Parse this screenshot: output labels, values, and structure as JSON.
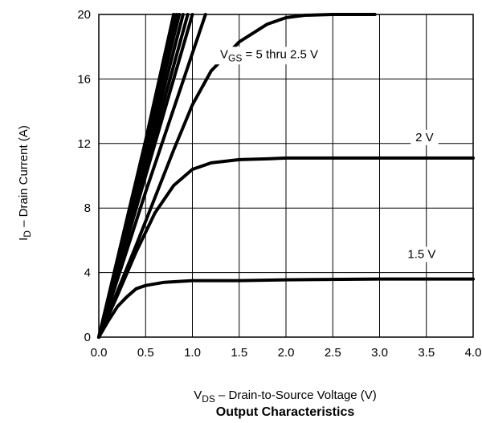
{
  "chart_data": {
    "type": "line",
    "title": "",
    "caption": "Output Characteristics",
    "xlabel": {
      "main": "V",
      "sub": "DS",
      "rest": " –  Drain-to-Source Voltage (V)"
    },
    "ylabel": {
      "main": "I",
      "sub": "D",
      "rest": " –  Drain Current (A)"
    },
    "xlim": [
      0,
      4
    ],
    "ylim": [
      0,
      20
    ],
    "x_ticks": [
      "0.0",
      "0.5",
      "1.0",
      "1.5",
      "2.0",
      "2.5",
      "3.0",
      "3.5",
      "4.0"
    ],
    "y_ticks": [
      "0",
      "4",
      "8",
      "12",
      "16",
      "20"
    ],
    "grid": true,
    "series": [
      {
        "x": [
          0,
          0.5,
          0.75,
          0.8
        ],
        "y": [
          0,
          11.5,
          18.5,
          20
        ]
      },
      {
        "x": [
          0,
          0.5,
          0.8
        ],
        "y": [
          0,
          12.2,
          20
        ]
      },
      {
        "x": [
          0,
          0.5,
          0.83
        ],
        "y": [
          0,
          12.0,
          20
        ]
      },
      {
        "x": [
          0,
          0.5,
          0.86
        ],
        "y": [
          0,
          11.6,
          20
        ]
      },
      {
        "x": [
          0,
          0.5,
          0.9
        ],
        "y": [
          0,
          11.0,
          20
        ]
      },
      {
        "x": [
          0,
          0.5,
          0.95
        ],
        "y": [
          0,
          10.5,
          20
        ]
      },
      {
        "x": [
          0,
          0.5,
          1.0
        ],
        "y": [
          0,
          10.0,
          20
        ]
      },
      {
        "x": [
          0,
          0.5,
          1.14
        ],
        "y": [
          0,
          9.0,
          20
        ]
      },
      {
        "x": [
          0,
          0.4,
          0.8,
          1.0,
          1.2,
          1.5,
          1.8,
          2.0,
          2.2,
          2.5,
          2.8,
          2.95
        ],
        "y": [
          0,
          5.7,
          11.6,
          14.4,
          16.5,
          18.3,
          19.4,
          19.8,
          19.95,
          20.0,
          20.0,
          20.0
        ]
      },
      {
        "x": [
          0,
          0.2,
          0.4,
          0.6,
          0.8,
          1.0,
          1.2,
          1.5,
          1.8,
          2.0,
          2.5,
          3.0,
          3.5,
          4.0
        ],
        "y": [
          0,
          2.6,
          5.3,
          7.7,
          9.4,
          10.4,
          10.8,
          11.0,
          11.05,
          11.1,
          11.1,
          11.1,
          11.1,
          11.1
        ]
      },
      {
        "x": [
          0,
          0.1,
          0.2,
          0.3,
          0.4,
          0.5,
          0.7,
          1.0,
          1.5,
          2.0,
          3.0,
          4.0
        ],
        "y": [
          0,
          1.0,
          1.9,
          2.5,
          3.0,
          3.2,
          3.4,
          3.5,
          3.5,
          3.55,
          3.6,
          3.6
        ]
      }
    ],
    "annotations": [
      {
        "main": "V",
        "sub": "GS",
        "rest": " = 5 thru 2.5 V",
        "x": 1.82,
        "y": 17.3
      },
      {
        "main": "",
        "sub": "",
        "rest": "2 V",
        "x": 3.48,
        "y": 12.15
      },
      {
        "main": "",
        "sub": "",
        "rest": "1.5 V",
        "x": 3.45,
        "y": 4.9
      }
    ]
  }
}
